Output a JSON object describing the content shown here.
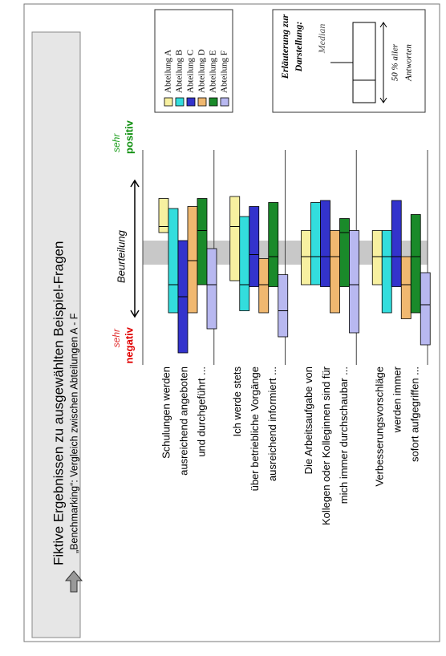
{
  "chart_data": {
    "type": "box",
    "title": "Fiktive Ergebnissen zu ausgewählten Beispiel-Fragen",
    "subtitle": "„Benchmarking“: Vergleich zwischen Abteilungen A - F",
    "axis_label": "Beurteilung",
    "negative_label": [
      "sehr",
      "negativ"
    ],
    "positive_label": [
      "sehr",
      "positiv"
    ],
    "categories": [
      [
        "Schulungen werden",
        "ausreichend angeboten",
        "und durchgeführt ..."
      ],
      [
        "Ich werde stets",
        "über betriebliche Vorgänge",
        "ausreichend informiert ..."
      ],
      [
        "Die Arbeitsaufgabe von",
        "Kollegen oder Kolleginnen sind für",
        "mich immer durchschaubar ..."
      ],
      [
        "Verbesserungsvorschläge",
        "werden immer",
        "sofort aufgegriffen ..."
      ]
    ],
    "xlim": [
      0,
      100
    ],
    "reference_band": [
      46,
      58
    ],
    "series": [
      {
        "name": "Abteilung A",
        "color": "#f7f0a0",
        "low": [
          62,
          38,
          36,
          36
        ],
        "median": [
          65,
          65,
          50,
          50
        ],
        "high": [
          79,
          80,
          63,
          63
        ]
      },
      {
        "name": "Abteilung B",
        "color": "#33dddd",
        "low": [
          22,
          23,
          36,
          22
        ],
        "median": [
          36,
          36,
          50,
          50
        ],
        "high": [
          74,
          70,
          77,
          63
        ]
      },
      {
        "name": "Abteilung C",
        "color": "#3333cc",
        "low": [
          2,
          35,
          35,
          35
        ],
        "median": [
          30,
          51,
          50,
          50
        ],
        "high": [
          58,
          75,
          78,
          78
        ]
      },
      {
        "name": "Abteilung D",
        "color": "#f0b870",
        "low": [
          22,
          22,
          22,
          19
        ],
        "median": [
          48,
          36,
          50,
          36
        ],
        "high": [
          75,
          49,
          63,
          50
        ]
      },
      {
        "name": "Abteilung E",
        "color": "#1a8a2a",
        "low": [
          36,
          35,
          35,
          22
        ],
        "median": [
          63,
          50,
          62,
          50
        ],
        "high": [
          79,
          77,
          69,
          71
        ]
      },
      {
        "name": "Abteilung F",
        "color": "#b8b8f0",
        "low": [
          14,
          10,
          12,
          6
        ],
        "median": [
          36,
          23,
          36,
          26
        ],
        "high": [
          54,
          41,
          63,
          42
        ]
      }
    ]
  },
  "explanation": {
    "title": [
      "Erläuterung zur",
      "Darstellung:"
    ],
    "median": "Median",
    "range": [
      "50 % aller",
      "Antworten"
    ]
  }
}
